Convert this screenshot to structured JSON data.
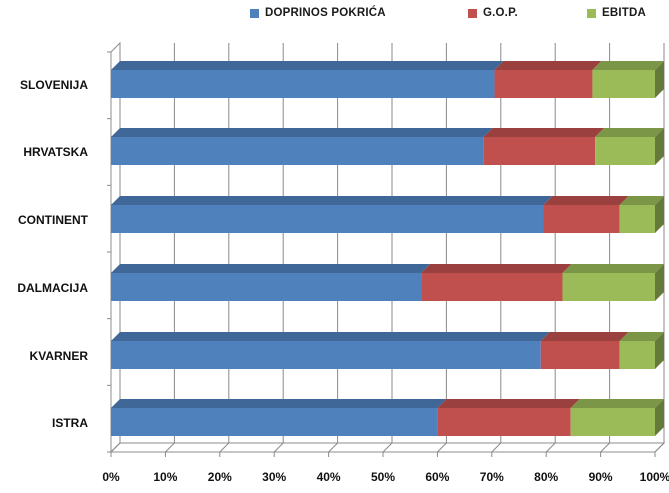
{
  "chart_data": {
    "type": "bar",
    "orientation": "horizontal",
    "stacked_percent": true,
    "style_3d": true,
    "categories": [
      "SLOVENIJA",
      "HRVATSKA",
      "CONTINENT",
      "DALMACIJA",
      "KVARNER",
      "ISTRA"
    ],
    "category_labels_shown": [
      "SLOVENIJA",
      "HRVATSKA",
      "CONTINENT",
      "DALMACIJA",
      "KVARNER",
      "ISTRA"
    ],
    "series": [
      {
        "name": "DOPRINOS POKRIĆA",
        "color": "#4f81bd",
        "values": [
          70.5,
          68.5,
          79.5,
          57,
          79,
          60
        ]
      },
      {
        "name": "G.O.P.",
        "color": "#c0504d",
        "values": [
          18,
          20.5,
          14,
          26,
          14.5,
          24.5
        ]
      },
      {
        "name": "EBITDA",
        "color": "#9bbb59",
        "values": [
          11.5,
          11,
          6.5,
          17,
          6.5,
          15.5
        ]
      }
    ],
    "xlim": [
      0,
      100
    ],
    "x_ticks": [
      "0%",
      "10%",
      "20%",
      "30%",
      "40%",
      "50%",
      "60%",
      "70%",
      "80%",
      "90%",
      "100%"
    ],
    "grid": true,
    "legend_position": "top",
    "title": "",
    "xlabel": "",
    "ylabel": ""
  }
}
